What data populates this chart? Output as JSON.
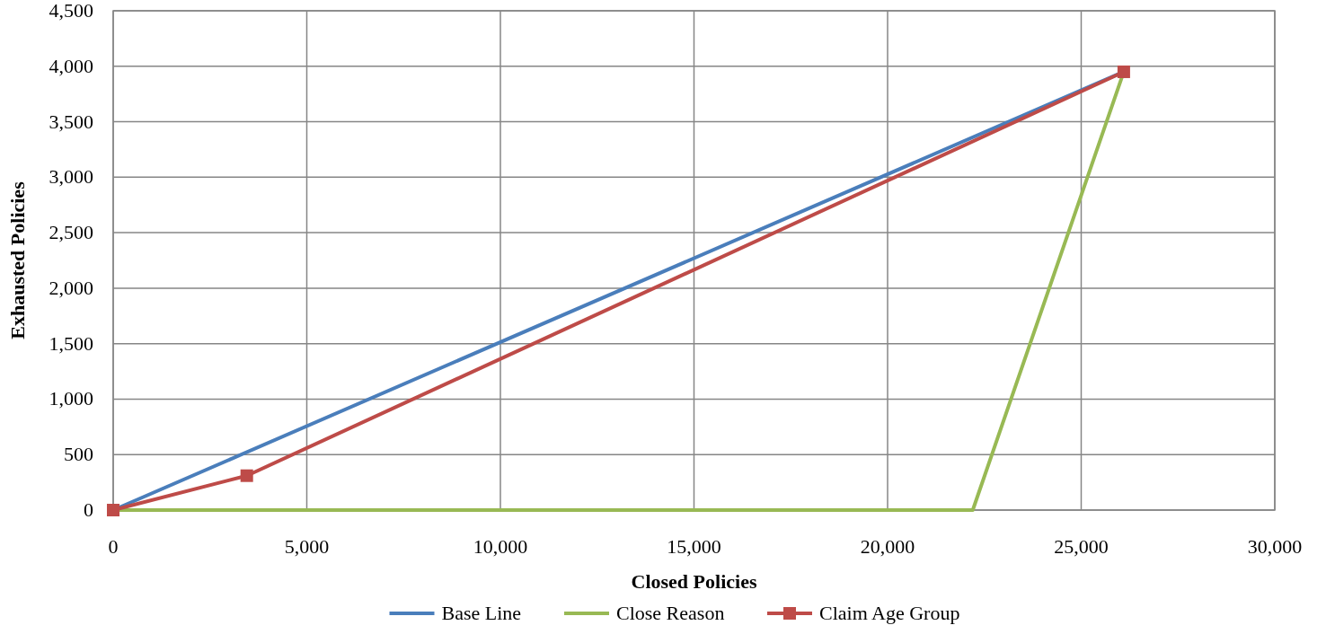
{
  "chart_data": {
    "type": "line",
    "xlabel": "Closed Policies",
    "ylabel": "Exhausted Policies",
    "xlim": [
      0,
      30000
    ],
    "xticks": [
      {
        "value": 0,
        "label": "0"
      },
      {
        "value": 5000,
        "label": "5,000"
      },
      {
        "value": 10000,
        "label": "10,000"
      },
      {
        "value": 15000,
        "label": "15,000"
      },
      {
        "value": 20000,
        "label": "20,000"
      },
      {
        "value": 25000,
        "label": "25,000"
      },
      {
        "value": 30000,
        "label": "30,000"
      }
    ],
    "ylim": [
      0,
      4500
    ],
    "yticks": [
      {
        "value": 0,
        "label": "0"
      },
      {
        "value": 500,
        "label": "500"
      },
      {
        "value": 1000,
        "label": "1,000"
      },
      {
        "value": 1500,
        "label": "1,500"
      },
      {
        "value": 2000,
        "label": "2,000"
      },
      {
        "value": 2500,
        "label": "2,500"
      },
      {
        "value": 3000,
        "label": "3,000"
      },
      {
        "value": 3500,
        "label": "3,500"
      },
      {
        "value": 4000,
        "label": "4,000"
      },
      {
        "value": 4500,
        "label": "4,500"
      }
    ],
    "grid": true,
    "legend": "bottom",
    "series": [
      {
        "name": "Base Line",
        "color": "#4a7ebb",
        "x": [
          0,
          26100
        ],
        "values": [
          0,
          3950
        ],
        "marker": "none"
      },
      {
        "name": "Close Reason",
        "color": "#98b954",
        "x": [
          0,
          22200,
          26100
        ],
        "values": [
          0,
          0,
          3950
        ],
        "marker": "none"
      },
      {
        "name": "Claim Age Group",
        "color": "#be4b48",
        "x": [
          0,
          3450,
          26100
        ],
        "values": [
          0,
          310,
          3950
        ],
        "marker": "square"
      }
    ]
  }
}
